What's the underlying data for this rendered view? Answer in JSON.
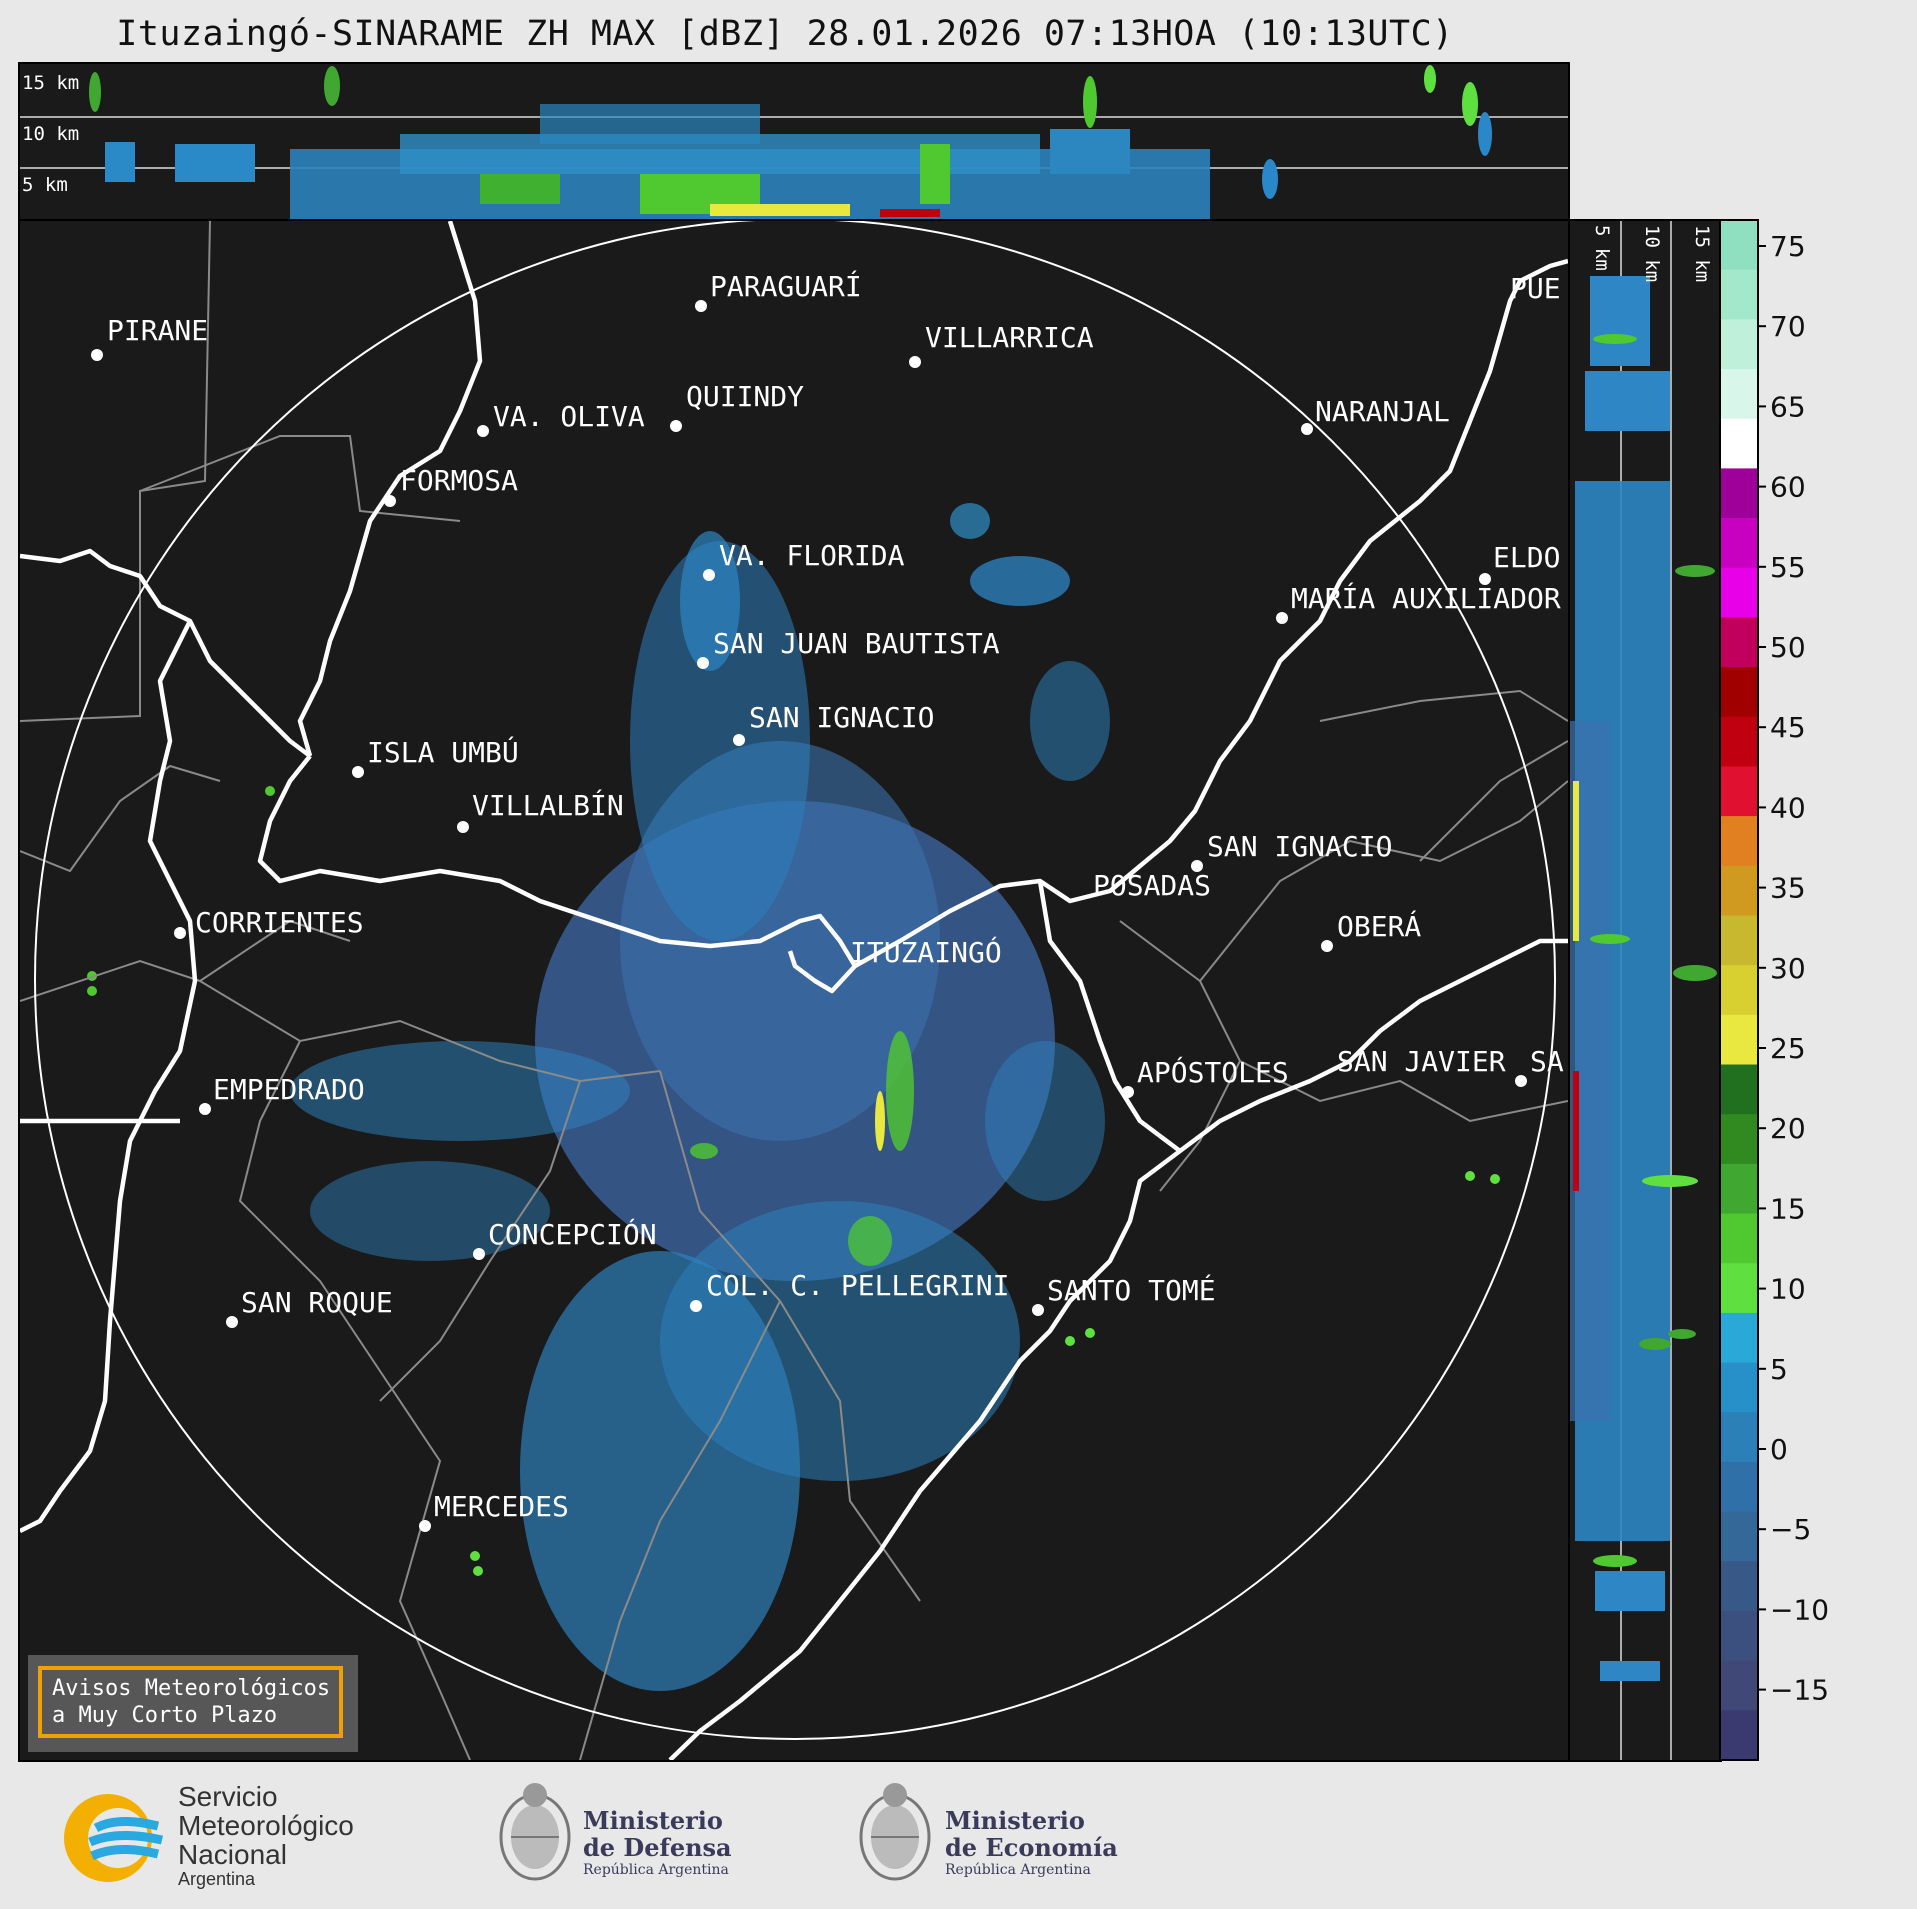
{
  "title": "Ituzaingó-SINARAME ZH MAX [dBZ] 28.01.2026 07:13HOA (10:13UTC)",
  "top_profile": {
    "height_labels": [
      "15 km",
      "10 km",
      "5 km"
    ]
  },
  "side_profile": {
    "height_labels": [
      "5 km",
      "10 km",
      "15 km"
    ]
  },
  "colorbar": {
    "ticks": [
      "75",
      "70",
      "65",
      "60",
      "55",
      "50",
      "45",
      "40",
      "35",
      "30",
      "25",
      "20",
      "15",
      "10",
      "5",
      "0",
      "−5",
      "−10",
      "−15"
    ],
    "colors": [
      "#8ee0c0",
      "#a4e8cc",
      "#bff0da",
      "#d8f6ea",
      "#ffffff",
      "#a0009a",
      "#c800c0",
      "#e800e8",
      "#c0005a",
      "#a00000",
      "#c00010",
      "#e01030",
      "#e08020",
      "#d09a20",
      "#c8b830",
      "#d8d030",
      "#e8e840",
      "#207020",
      "#308a20",
      "#40a830",
      "#50c830",
      "#60e040",
      "#2aa8d8",
      "#2890c8",
      "#2c80b8",
      "#3070a8",
      "#346898",
      "#385888",
      "#3c5080",
      "#404878",
      "#3a3a70"
    ]
  },
  "cities": [
    {
      "name": "PARAGUARÍ"
    },
    {
      "name": "PIRANE"
    },
    {
      "name": "VILLARRICA"
    },
    {
      "name": "VA. OLIVA"
    },
    {
      "name": "QUIINDY"
    },
    {
      "name": "NARANJAL"
    },
    {
      "name": "FORMOSA"
    },
    {
      "name": "PUE"
    },
    {
      "name": "VA. FLORIDA"
    },
    {
      "name": "ELDO"
    },
    {
      "name": "MARÍA AUXILIADOR"
    },
    {
      "name": "SAN JUAN BAUTISTA"
    },
    {
      "name": "SAN IGNACIO"
    },
    {
      "name": "ISLA UMBÚ"
    },
    {
      "name": "VILLALBÍN"
    },
    {
      "name": "SAN IGNACIO"
    },
    {
      "name": "POSADAS"
    },
    {
      "name": "CORRIENTES"
    },
    {
      "name": "ITUZAINGÓ"
    },
    {
      "name": "OBERÁ"
    },
    {
      "name": "APÓSTOLES"
    },
    {
      "name": "SAN JAVIER"
    },
    {
      "name": "SA"
    },
    {
      "name": "EMPEDRADO"
    },
    {
      "name": "CONCEPCIÓN"
    },
    {
      "name": "COL. C. PELLEGRINI"
    },
    {
      "name": "SANTO TOMÉ"
    },
    {
      "name": "SAN ROQUE"
    },
    {
      "name": "MERCEDES"
    }
  ],
  "aviso": {
    "line1": "Avisos Meteorológicos",
    "line2": "a Muy Corto Plazo"
  },
  "logos": {
    "smn": {
      "line1": "Servicio",
      "line2": "Meteorológico",
      "line3": "Nacional",
      "line4": "Argentina"
    },
    "defensa": {
      "line1": "Ministerio",
      "line2": "de Defensa",
      "line3": "República Argentina"
    },
    "economia": {
      "line1": "Ministerio",
      "line2": "de Economía",
      "line3": "República Argentina"
    }
  }
}
